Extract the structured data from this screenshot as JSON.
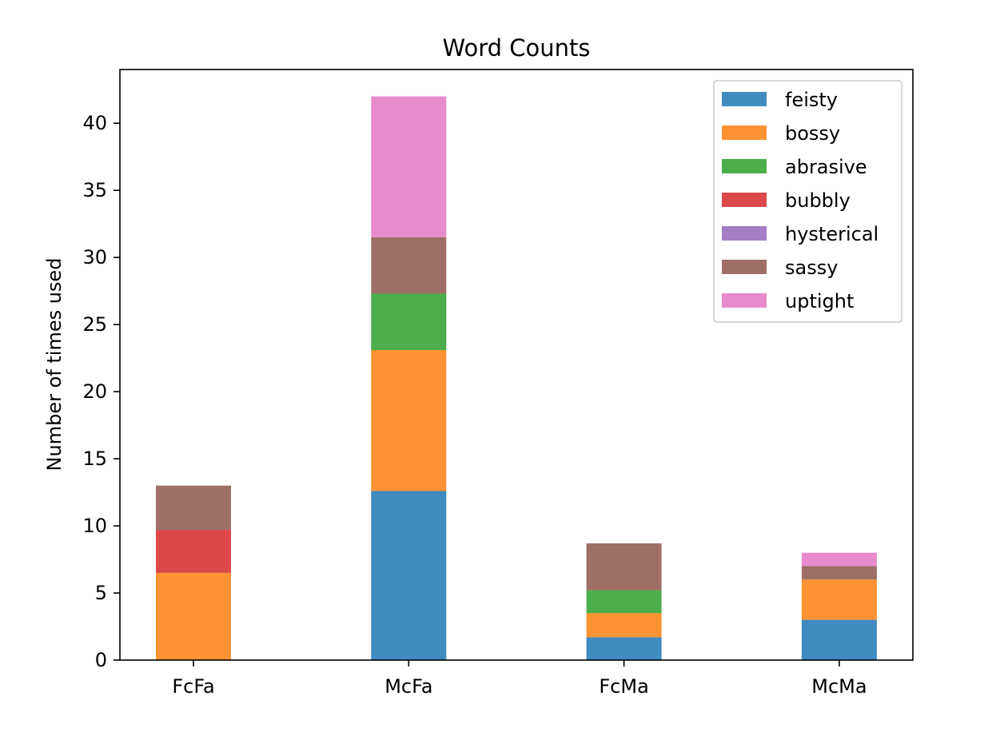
{
  "chart_data": {
    "type": "bar",
    "stacked": true,
    "title": "Word Counts",
    "xlabel": "",
    "ylabel": "Number of times used",
    "ylim": [
      0,
      44
    ],
    "yticks": [
      0,
      5,
      10,
      15,
      20,
      25,
      30,
      35,
      40
    ],
    "grid": false,
    "legend_position": "top-right",
    "categories": [
      "FcFa",
      "McFa",
      "FcMa",
      "McMa"
    ],
    "series": [
      {
        "name": "feisty",
        "color": "#1f77b4",
        "values": [
          0,
          12.6,
          1.7,
          3.0
        ]
      },
      {
        "name": "bossy",
        "color": "#ff7f0e",
        "values": [
          6.5,
          10.5,
          1.8,
          3.0
        ]
      },
      {
        "name": "abrasive",
        "color": "#2ca02c",
        "values": [
          0,
          4.2,
          1.7,
          0
        ]
      },
      {
        "name": "bubbly",
        "color": "#d62728",
        "values": [
          3.2,
          0,
          0,
          0
        ]
      },
      {
        "name": "hysterical",
        "color": "#9467bd",
        "values": [
          0,
          0,
          0,
          0
        ]
      },
      {
        "name": "sassy",
        "color": "#8c564b",
        "values": [
          3.3,
          4.2,
          3.5,
          1.0
        ]
      },
      {
        "name": "uptight",
        "color": "#e377c2",
        "values": [
          0,
          10.5,
          0,
          1.0
        ]
      }
    ]
  }
}
